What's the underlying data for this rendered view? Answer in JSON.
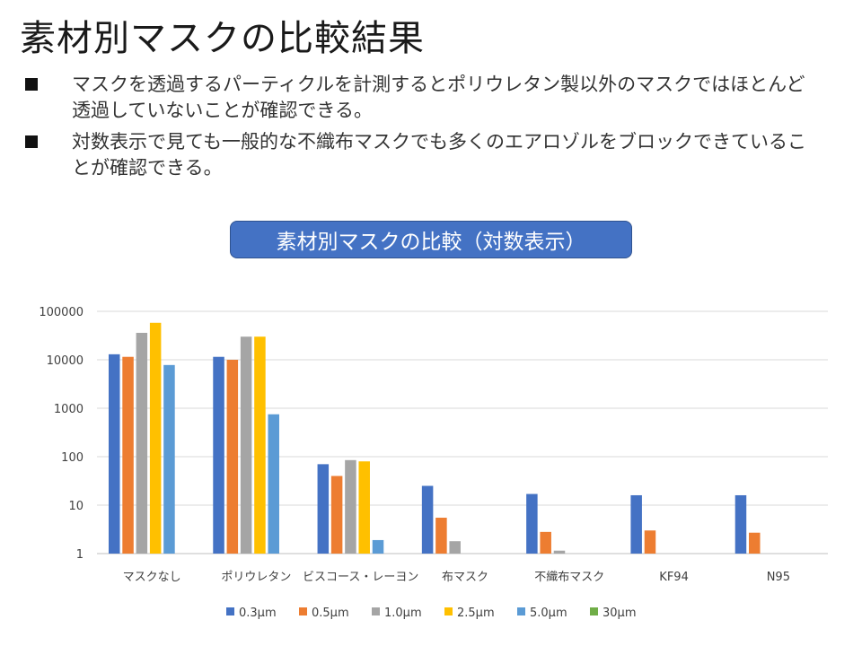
{
  "slide": {
    "title": "素材別マスクの比較結果",
    "bullets": [
      "マスクを透過するパーティクルを計測するとポリウレタン製以外のマスクではほとんど透過していないことが確認できる。",
      "対数表示で見ても一般的な不織布マスクでも多くのエアロゾルをブロックできていることが確認できる。"
    ]
  },
  "chart_data": {
    "type": "bar",
    "title": "素材別マスクの比較（対数表示）",
    "yscale": "log",
    "ylim": [
      1,
      100000
    ],
    "yticks": [
      "1",
      "10",
      "100",
      "1000",
      "10000",
      "100000"
    ],
    "grid": true,
    "legend_position": "bottom",
    "categories": [
      "マスクなし",
      "ポリウレタン",
      "ビスコース・レーヨン",
      "布マスク",
      "不織布マスク",
      "KF94",
      "N95"
    ],
    "series": [
      {
        "name": "0.3μm",
        "color": "#4472c4",
        "values": [
          13000,
          11500,
          70,
          25,
          17,
          16,
          16
        ]
      },
      {
        "name": "0.5μm",
        "color": "#ed7d31",
        "values": [
          11500,
          10000,
          40,
          5.5,
          2.8,
          3,
          2.7
        ]
      },
      {
        "name": "1.0μm",
        "color": "#a5a5a5",
        "values": [
          36000,
          30000,
          85,
          1.8,
          1.15,
          null,
          null
        ]
      },
      {
        "name": "2.5μm",
        "color": "#ffc000",
        "values": [
          58000,
          30000,
          80,
          null,
          null,
          null,
          null
        ]
      },
      {
        "name": "5.0μm",
        "color": "#5b9bd5",
        "values": [
          7800,
          750,
          1.9,
          null,
          null,
          null,
          null
        ]
      },
      {
        "name": "30μm",
        "color": "#70ad47",
        "values": [
          null,
          null,
          null,
          null,
          null,
          null,
          null
        ]
      }
    ]
  }
}
